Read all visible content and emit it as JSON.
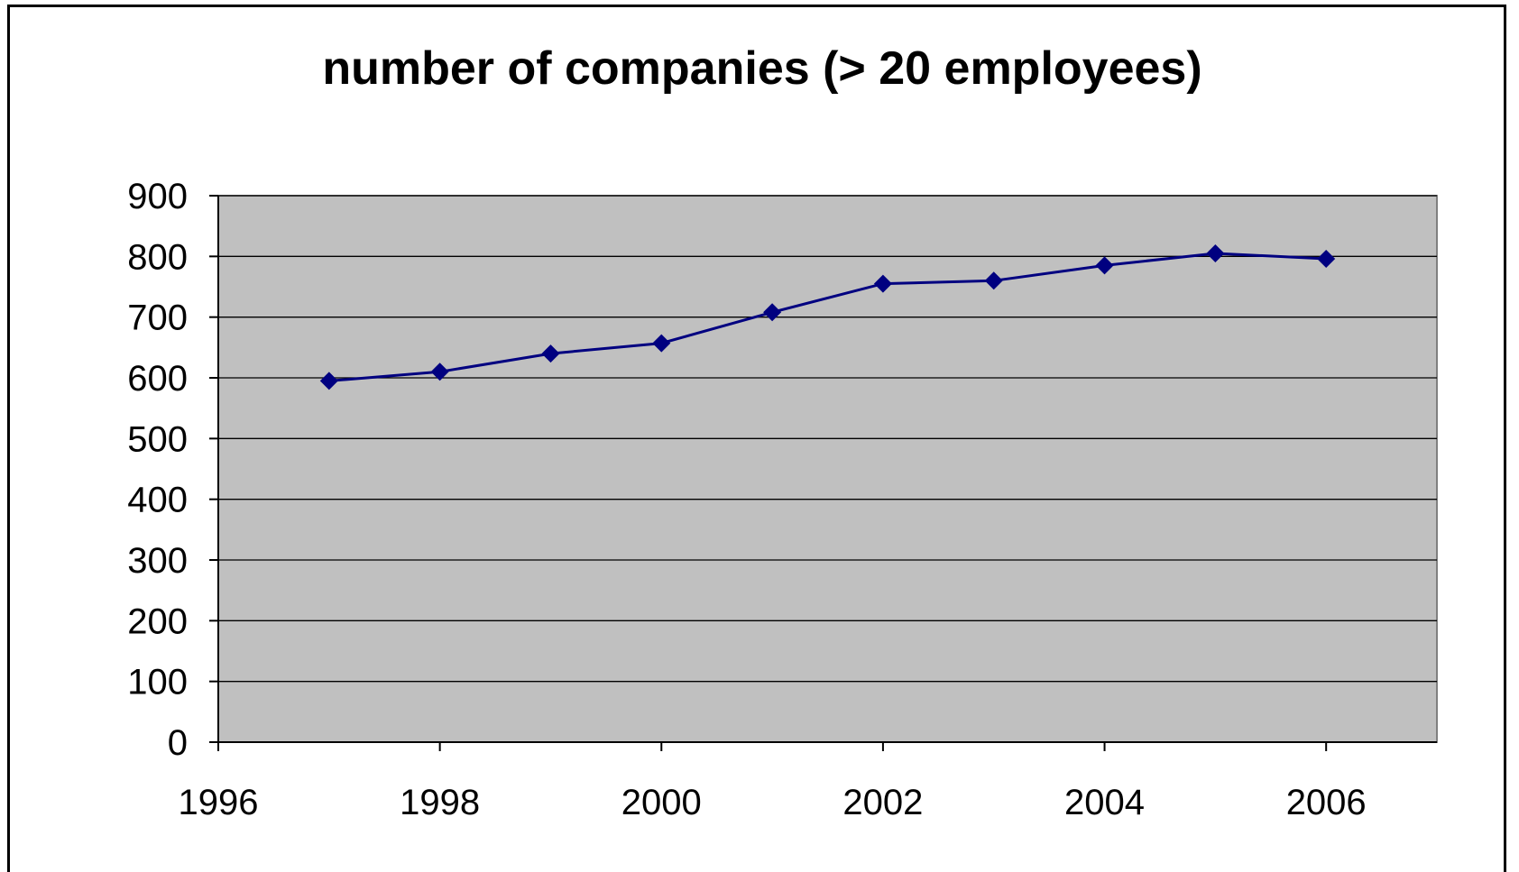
{
  "chart_data": {
    "type": "scatter",
    "title": "number of companies (> 20 employees)",
    "xlabel": "",
    "ylabel": "",
    "x": [
      1997,
      1998,
      1999,
      2000,
      2001,
      2002,
      2003,
      2004,
      2005,
      2006
    ],
    "y": [
      595,
      610,
      640,
      657,
      708,
      755,
      760,
      785,
      805,
      796
    ],
    "xlim": [
      1996,
      2007
    ],
    "ylim": [
      0,
      900
    ],
    "x_ticks": [
      1996,
      1998,
      2000,
      2002,
      2004,
      2006
    ],
    "y_ticks": [
      0,
      100,
      200,
      300,
      400,
      500,
      600,
      700,
      800,
      900
    ],
    "grid": "horizontal",
    "legend": "none",
    "line_connected": true,
    "marker": "diamond",
    "colors": {
      "series": "#000080",
      "plot_background": "#c0c0c0",
      "gridline": "#000000"
    }
  }
}
